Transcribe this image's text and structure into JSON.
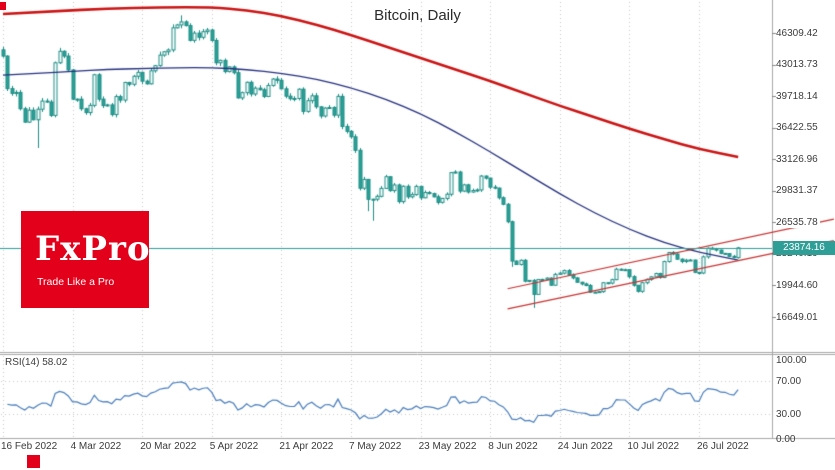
{
  "chart": {
    "title": "Bitcoin, Daily"
  },
  "price_scale": {
    "current_price": "23874.16"
  },
  "rsi": {
    "label": "RSI(14) 58.02"
  },
  "logo": {
    "brand": "FxPro",
    "tagline": "Trade Like a Pro"
  },
  "colors": {
    "background": "#ffffff",
    "candle_border": "#1e8e86",
    "candle_up_fill": "#ffffff",
    "candle_down_fill": "#2aa198",
    "ma_red": "#cc1414",
    "ma_navy": "#25317e",
    "channel_red": "#c83232",
    "price_line": "#2e9e97",
    "price_tag_bg": "#2e9e97",
    "rsi_blue": "#4a7ebb",
    "brand_red": "#e2001a",
    "grid": "#c8c8c8",
    "separator": "#a8a8a8",
    "axis_text": "#3c3c3c"
  },
  "chart_data": {
    "type": "candlestick",
    "symbol": "Bitcoin",
    "timeframe": "Daily",
    "title": "Bitcoin, Daily",
    "y_ticks": [
      46309.42,
      43013.73,
      39718.14,
      36422.55,
      33126.96,
      29831.37,
      26535.78,
      23240.19,
      19944.6,
      16649.01
    ],
    "x_ticks": [
      {
        "day": 0,
        "label": "16 Feb 2022"
      },
      {
        "day": 16,
        "label": "4 Mar 2022"
      },
      {
        "day": 32,
        "label": "20 Mar 2022"
      },
      {
        "day": 48,
        "label": "5 Apr 2022"
      },
      {
        "day": 64,
        "label": "21 Apr 2022"
      },
      {
        "day": 80,
        "label": "7 May 2022"
      },
      {
        "day": 96,
        "label": "23 May 2022"
      },
      {
        "day": 112,
        "label": "8 Jun 2022"
      },
      {
        "day": 128,
        "label": "24 Jun 2022"
      },
      {
        "day": 144,
        "label": "10 Jul 2022"
      },
      {
        "day": 160,
        "label": "26 Jul 2022"
      }
    ],
    "current_price": 23874.16,
    "first_open": 44550,
    "closes": [
      43900,
      40500,
      40000,
      40100,
      38400,
      37000,
      38250,
      37250,
      38350,
      39200,
      39100,
      37700,
      43200,
      44400,
      43900,
      42450,
      39400,
      39400,
      38400,
      38000,
      38750,
      41950,
      39400,
      38730,
      38800,
      37790,
      39670,
      39300,
      41140,
      40950,
      41790,
      42200,
      41280,
      41000,
      42360,
      42900,
      44000,
      44350,
      44540,
      46850,
      47150,
      47470,
      47080,
      45540,
      46300,
      45860,
      46450,
      46620,
      45530,
      43200,
      43450,
      42280,
      42770,
      42160,
      39530,
      40080,
      41160,
      39940,
      40550,
      40380,
      39680,
      40830,
      41500,
      41370,
      40480,
      39710,
      39450,
      39470,
      40440,
      38120,
      39240,
      39750,
      38600,
      37640,
      38470,
      38530,
      37730,
      39690,
      36550,
      36040,
      35470,
      34060,
      30100,
      31020,
      28940,
      28950,
      29250,
      30080,
      31300,
      29850,
      30440,
      28700,
      30300,
      29200,
      29430,
      30290,
      29100,
      29650,
      29540,
      29200,
      28620,
      29030,
      29470,
      31730,
      31790,
      29800,
      30450,
      29700,
      29860,
      29920,
      31370,
      31150,
      30210,
      30110,
      29100,
      28420,
      26600,
      22490,
      22130,
      22570,
      20390,
      20470,
      19010,
      20570,
      20570,
      20710,
      19970,
      21100,
      21230,
      21500,
      21030,
      20730,
      20280,
      20100,
      19940,
      19240,
      19240,
      19300,
      20230,
      20190,
      20550,
      21640,
      21590,
      21590,
      20860,
      19960,
      19330,
      20230,
      20580,
      20840,
      21190,
      20780,
      22440,
      23390,
      23230,
      22690,
      22450,
      22580,
      22600,
      21310,
      21240,
      22930,
      23840,
      23770,
      23640,
      23290,
      23270,
      22980,
      22850,
      23874.16
    ],
    "wick_overrides": {
      "8": {
        "low": 34300
      },
      "41": {
        "high": 48150
      },
      "84": {
        "low": 27700
      },
      "85": {
        "low": 26700
      },
      "117": {
        "low": 21880
      },
      "122": {
        "low": 17600
      }
    },
    "ma_slow_red": [
      [
        0,
        48300
      ],
      [
        12,
        48600
      ],
      [
        24,
        48850
      ],
      [
        36,
        49000
      ],
      [
        48,
        49000
      ],
      [
        56,
        48700
      ],
      [
        64,
        48100
      ],
      [
        72,
        47200
      ],
      [
        80,
        46100
      ],
      [
        88,
        44900
      ],
      [
        96,
        43700
      ],
      [
        104,
        42500
      ],
      [
        112,
        41300
      ],
      [
        120,
        40000
      ],
      [
        128,
        38700
      ],
      [
        136,
        37500
      ],
      [
        144,
        36300
      ],
      [
        152,
        35200
      ],
      [
        160,
        34200
      ],
      [
        169,
        33350
      ]
    ],
    "ma_fast_navy": [
      [
        0,
        41900
      ],
      [
        8,
        42100
      ],
      [
        16,
        42300
      ],
      [
        24,
        42500
      ],
      [
        32,
        42600
      ],
      [
        40,
        42700
      ],
      [
        48,
        42700
      ],
      [
        56,
        42500
      ],
      [
        64,
        42100
      ],
      [
        72,
        41500
      ],
      [
        80,
        40600
      ],
      [
        88,
        39400
      ],
      [
        96,
        37900
      ],
      [
        104,
        36000
      ],
      [
        112,
        33900
      ],
      [
        120,
        31700
      ],
      [
        128,
        29500
      ],
      [
        136,
        27500
      ],
      [
        144,
        25800
      ],
      [
        152,
        24400
      ],
      [
        160,
        23400
      ],
      [
        169,
        22600
      ]
    ],
    "channel": {
      "upper": [
        [
          116,
          19600
        ],
        [
          191,
          26875
        ]
      ],
      "lower": [
        [
          116,
          17500
        ],
        [
          191,
          24625
        ]
      ]
    },
    "rsi": {
      "period": 14,
      "current": 58.02,
      "levels": [
        100,
        70,
        30,
        0
      ]
    }
  }
}
